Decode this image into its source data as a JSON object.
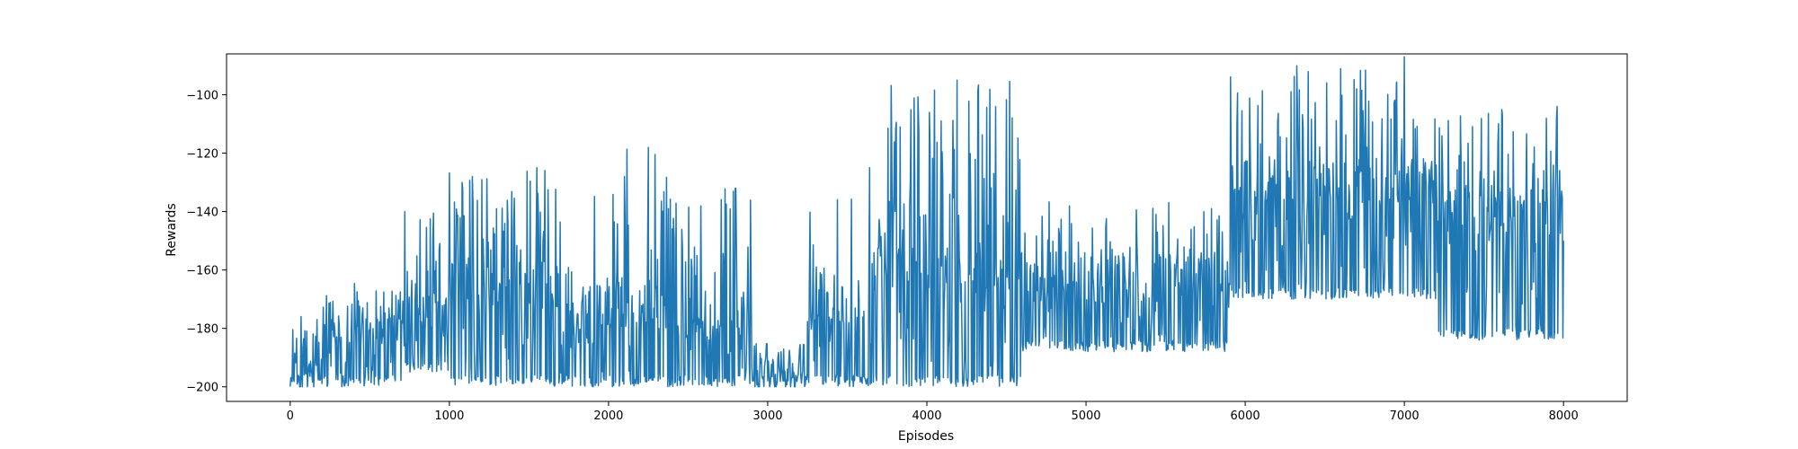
{
  "chart_data": {
    "type": "line",
    "title": "",
    "xlabel": "Episodes",
    "ylabel": "Rewards",
    "xlim": [
      -400,
      8400
    ],
    "ylim": [
      -205,
      -86
    ],
    "xticks": [
      0,
      1000,
      2000,
      3000,
      4000,
      5000,
      6000,
      7000,
      8000
    ],
    "yticks": [
      -200,
      -180,
      -160,
      -140,
      -120,
      -100
    ],
    "grid": false,
    "legend": "none",
    "series": [
      {
        "color": "#1f77b4",
        "segments": [
          {
            "x0": 0,
            "x1": 200,
            "low": -200,
            "high": -175,
            "base": -199
          },
          {
            "x0": 200,
            "x1": 700,
            "low": -200,
            "high": -162,
            "base": -178
          },
          {
            "x0": 700,
            "x1": 1000,
            "low": -195,
            "high": -140,
            "base": -170
          },
          {
            "x0": 1000,
            "x1": 1700,
            "low": -200,
            "high": -125,
            "base": -165
          },
          {
            "x0": 1700,
            "x1": 1900,
            "low": -200,
            "high": -158,
            "base": -178
          },
          {
            "x0": 1900,
            "x1": 2400,
            "low": -200,
            "high": -118,
            "base": -172
          },
          {
            "x0": 2400,
            "x1": 2900,
            "low": -200,
            "high": -132,
            "base": -180
          },
          {
            "x0": 2900,
            "x1": 3250,
            "low": -200,
            "high": -185,
            "base": -198
          },
          {
            "x0": 3250,
            "x1": 3600,
            "low": -200,
            "high": -135,
            "base": -170
          },
          {
            "x0": 3600,
            "x1": 4600,
            "low": -200,
            "high": -95,
            "base": -160
          },
          {
            "x0": 4600,
            "x1": 5900,
            "low": -188,
            "high": -136,
            "base": -163
          },
          {
            "x0": 5900,
            "x1": 7200,
            "low": -170,
            "high": -87,
            "base": -130
          },
          {
            "x0": 7200,
            "x1": 8000,
            "low": -184,
            "high": -104,
            "base": -140
          }
        ],
        "peaks": [
          {
            "x": 720,
            "y": -140
          },
          {
            "x": 1080,
            "y": -130
          },
          {
            "x": 1550,
            "y": -125
          },
          {
            "x": 2100,
            "y": -128
          },
          {
            "x": 2250,
            "y": -118
          },
          {
            "x": 2800,
            "y": -132
          },
          {
            "x": 3140,
            "y": -190
          },
          {
            "x": 3950,
            "y": -113
          },
          {
            "x": 4090,
            "y": -109
          },
          {
            "x": 4190,
            "y": -95
          },
          {
            "x": 4420,
            "y": -127
          },
          {
            "x": 6700,
            "y": -98
          },
          {
            "x": 6950,
            "y": -96
          },
          {
            "x": 7000,
            "y": -87
          },
          {
            "x": 7470,
            "y": -184
          },
          {
            "x": 7960,
            "y": -104
          }
        ]
      }
    ]
  }
}
